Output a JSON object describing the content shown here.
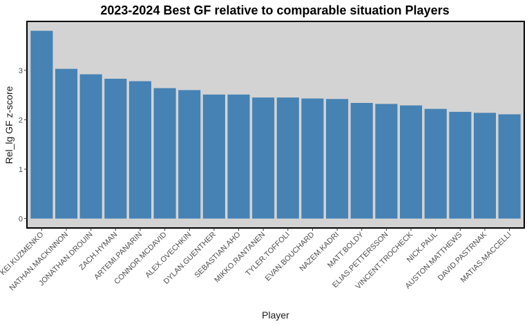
{
  "chart_data": {
    "type": "bar",
    "title": "2023-2024 Best GF relative to comparable situation Players",
    "xlabel": "Player",
    "ylabel": "Rel_lg GF z-score",
    "categories": [
      "KEI.KUZMENKO",
      "NATHAN.MACKINNON",
      "JONATHAN.DROUIN",
      "ZACH.HYMAN",
      "ARTEMI.PANARIN",
      "CONNOR.MCDAVID",
      "ALEX.OVECHKIN",
      "DYLAN.GUENTHER",
      "SEBASTIAN.AHO",
      "MIKKO.RANTANEN",
      "TYLER.TOFFOLI",
      "EVAN.BOUCHARD",
      "NAZEM.KADRI",
      "MATT.BOLDY",
      "ELIAS.PETTERSSON",
      "VINCENT.TROCHECK",
      "NICK.PAUL",
      "AUSTON.MATTHEWS",
      "DAVID.PASTRNAK",
      "MATIAS.MACCELLI"
    ],
    "values": [
      3.8,
      3.03,
      2.92,
      2.83,
      2.78,
      2.64,
      2.6,
      2.51,
      2.51,
      2.45,
      2.45,
      2.43,
      2.42,
      2.34,
      2.32,
      2.29,
      2.22,
      2.16,
      2.14,
      2.11
    ],
    "yticks": [
      0,
      1,
      2,
      3
    ],
    "ylim": [
      -0.19,
      3.99
    ],
    "grid": false,
    "legend": "none",
    "bar_color": "#4682b4",
    "panel_color": "#d3d3d3"
  }
}
